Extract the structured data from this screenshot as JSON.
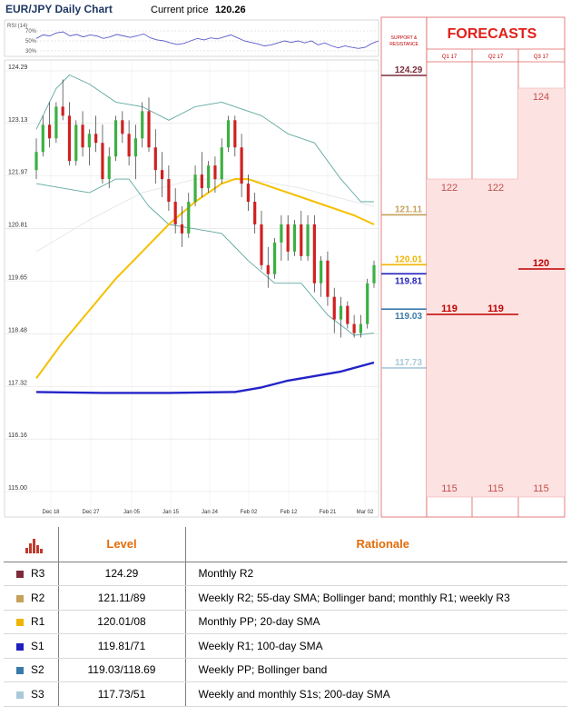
{
  "header": {
    "title": "EUR/JPY Daily Chart",
    "current_price_label": "Current price",
    "current_price": "120.26"
  },
  "rsi": {
    "label": "RSI (14)",
    "levels": [
      "70%",
      "50%",
      "30%"
    ]
  },
  "forecast_panel": {
    "title": "FORECASTS",
    "sr_header": "SUPPORT & RESISTANCE",
    "columns": [
      {
        "name": "Q1 17",
        "high": "122",
        "mid": "119",
        "low": "115"
      },
      {
        "name": "Q2 17",
        "high": "122",
        "mid": "119",
        "low": "115"
      },
      {
        "name": "Q3 17",
        "high": "124",
        "mid": "120",
        "low": "115"
      }
    ]
  },
  "chart_data": {
    "type": "candlestick",
    "title": "EUR/JPY Daily Chart",
    "ylim": [
      115.0,
      124.29
    ],
    "y_ticks": [
      "124.29",
      "123.13",
      "121.97",
      "120.81",
      "119.65",
      "118.48",
      "117.32",
      "116.16",
      "115.00"
    ],
    "x_ticks": [
      "Dec 18",
      "Dec 27",
      "Jan 05",
      "Jan 15",
      "Jan 24",
      "Feb 02",
      "Feb 12",
      "Feb 21",
      "Mar 02"
    ],
    "candles": [
      [
        122.1,
        122.8,
        121.9,
        122.5
      ],
      [
        122.5,
        123.3,
        122.4,
        123.1
      ],
      [
        123.1,
        123.6,
        122.6,
        122.8
      ],
      [
        122.8,
        123.6,
        122.7,
        123.5
      ],
      [
        123.5,
        124.1,
        123.2,
        123.3
      ],
      [
        123.3,
        123.6,
        122.2,
        122.3
      ],
      [
        122.3,
        123.2,
        122.2,
        123.1
      ],
      [
        123.1,
        123.4,
        122.4,
        122.6
      ],
      [
        122.6,
        123.0,
        122.2,
        122.9
      ],
      [
        122.9,
        123.3,
        122.5,
        122.7
      ],
      [
        122.7,
        123.1,
        121.8,
        121.9
      ],
      [
        121.9,
        122.6,
        121.7,
        122.4
      ],
      [
        122.4,
        123.3,
        122.3,
        123.2
      ],
      [
        123.2,
        123.4,
        122.7,
        122.9
      ],
      [
        122.9,
        123.2,
        122.2,
        122.4
      ],
      [
        122.4,
        123.1,
        121.9,
        122.8
      ],
      [
        122.8,
        123.6,
        122.6,
        123.4
      ],
      [
        123.4,
        123.7,
        122.5,
        122.6
      ],
      [
        122.6,
        123.0,
        121.8,
        122.1
      ],
      [
        122.1,
        122.5,
        121.5,
        121.9
      ],
      [
        121.9,
        122.2,
        121.2,
        121.4
      ],
      [
        121.4,
        121.7,
        120.7,
        120.9
      ],
      [
        120.9,
        121.3,
        120.4,
        120.7
      ],
      [
        120.7,
        121.6,
        120.6,
        121.4
      ],
      [
        121.4,
        122.2,
        121.3,
        122.0
      ],
      [
        122.0,
        122.5,
        121.5,
        121.7
      ],
      [
        121.7,
        122.3,
        121.6,
        122.2
      ],
      [
        122.2,
        122.4,
        121.6,
        121.9
      ],
      [
        121.9,
        122.8,
        121.8,
        122.6
      ],
      [
        122.6,
        123.3,
        122.5,
        123.2
      ],
      [
        123.2,
        123.3,
        122.4,
        122.6
      ],
      [
        122.6,
        122.9,
        121.5,
        121.8
      ],
      [
        121.8,
        122.0,
        121.2,
        121.4
      ],
      [
        121.4,
        121.6,
        120.7,
        120.9
      ],
      [
        120.9,
        121.2,
        119.9,
        120.0
      ],
      [
        120.0,
        120.4,
        119.5,
        119.8
      ],
      [
        119.8,
        120.6,
        119.7,
        120.5
      ],
      [
        120.5,
        121.1,
        120.1,
        120.9
      ],
      [
        120.9,
        121.1,
        120.1,
        120.3
      ],
      [
        120.3,
        121.0,
        120.2,
        120.9
      ],
      [
        120.9,
        121.2,
        120.1,
        120.2
      ],
      [
        120.2,
        121.1,
        120.1,
        120.9
      ],
      [
        120.9,
        121.1,
        119.4,
        119.6
      ],
      [
        119.6,
        120.2,
        119.3,
        120.1
      ],
      [
        120.1,
        120.3,
        119.1,
        119.3
      ],
      [
        119.3,
        119.5,
        118.5,
        118.8
      ],
      [
        118.8,
        119.3,
        118.4,
        119.1
      ],
      [
        119.1,
        119.2,
        118.6,
        118.7
      ],
      [
        118.7,
        118.9,
        118.4,
        118.5
      ],
      [
        118.5,
        118.9,
        118.4,
        118.7
      ],
      [
        118.7,
        119.7,
        118.6,
        119.6
      ],
      [
        119.6,
        120.1,
        119.5,
        120.0
      ]
    ],
    "sma_20": [
      [
        0,
        117.5
      ],
      [
        4,
        118.3
      ],
      [
        8,
        119.0
      ],
      [
        12,
        119.7
      ],
      [
        16,
        120.3
      ],
      [
        20,
        120.9
      ],
      [
        24,
        121.4
      ],
      [
        28,
        121.8
      ],
      [
        30,
        121.9
      ],
      [
        32,
        121.9
      ],
      [
        36,
        121.7
      ],
      [
        40,
        121.5
      ],
      [
        44,
        121.3
      ],
      [
        48,
        121.1
      ],
      [
        51,
        120.9
      ]
    ],
    "sma_100": [
      [
        0,
        117.2
      ],
      [
        10,
        117.18
      ],
      [
        20,
        117.18
      ],
      [
        30,
        117.2
      ],
      [
        34,
        117.3
      ],
      [
        38,
        117.45
      ],
      [
        42,
        117.55
      ],
      [
        46,
        117.65
      ],
      [
        51,
        117.85
      ]
    ],
    "bollinger_upper": [
      [
        0,
        123.0
      ],
      [
        3,
        123.9
      ],
      [
        5,
        124.2
      ],
      [
        8,
        124.0
      ],
      [
        12,
        123.6
      ],
      [
        16,
        123.5
      ],
      [
        20,
        123.2
      ],
      [
        24,
        123.5
      ],
      [
        28,
        123.6
      ],
      [
        30,
        123.5
      ],
      [
        34,
        123.3
      ],
      [
        38,
        122.9
      ],
      [
        42,
        122.7
      ],
      [
        46,
        121.9
      ],
      [
        49,
        121.4
      ],
      [
        51,
        121.4
      ]
    ],
    "bollinger_lower": [
      [
        0,
        121.8
      ],
      [
        4,
        121.7
      ],
      [
        8,
        121.6
      ],
      [
        12,
        121.9
      ],
      [
        14,
        121.9
      ],
      [
        17,
        121.3
      ],
      [
        20,
        120.9
      ],
      [
        24,
        120.8
      ],
      [
        28,
        120.7
      ],
      [
        32,
        120.1
      ],
      [
        36,
        119.6
      ],
      [
        40,
        119.6
      ],
      [
        44,
        118.9
      ],
      [
        48,
        118.45
      ],
      [
        51,
        118.5
      ]
    ],
    "sma_200_faint": [
      [
        0,
        120.3
      ],
      [
        8,
        121.0
      ],
      [
        16,
        121.6
      ],
      [
        24,
        121.9
      ],
      [
        32,
        121.9
      ],
      [
        40,
        121.7
      ],
      [
        48,
        121.4
      ],
      [
        51,
        121.3
      ]
    ],
    "rsi_values": [
      0.55,
      0.62,
      0.6,
      0.66,
      0.68,
      0.6,
      0.63,
      0.58,
      0.62,
      0.6,
      0.55,
      0.58,
      0.63,
      0.6,
      0.57,
      0.6,
      0.64,
      0.56,
      0.52,
      0.5,
      0.46,
      0.43,
      0.45,
      0.5,
      0.55,
      0.52,
      0.56,
      0.54,
      0.58,
      0.62,
      0.56,
      0.5,
      0.47,
      0.44,
      0.4,
      0.42,
      0.46,
      0.5,
      0.47,
      0.5,
      0.46,
      0.5,
      0.42,
      0.46,
      0.4,
      0.36,
      0.4,
      0.37,
      0.35,
      0.37,
      0.45,
      0.5
    ],
    "level_markers": [
      {
        "value": "124.29",
        "num": 124.29,
        "color": "#7b2c3b"
      },
      {
        "value": "121.11",
        "num": 121.11,
        "color": "#c6a15b"
      },
      {
        "value": "120.01",
        "num": 120.01,
        "color": "#f0b400"
      },
      {
        "value": "119.81",
        "num": 119.81,
        "color": "#1f1fbf"
      },
      {
        "value": "119.03",
        "num": 119.03,
        "color": "#3a7aab"
      },
      {
        "value": "117.73",
        "num": 117.73,
        "color": "#a9c9d9"
      }
    ]
  },
  "level_table": {
    "headers": {
      "level": "Level",
      "rationale": "Rationale"
    },
    "rows": [
      {
        "name": "R3",
        "level": "124.29",
        "rationale": "Monthly R2",
        "color": "#7b2c3b"
      },
      {
        "name": "R2",
        "level": "121.11/89",
        "rationale": "Weekly R2; 55-day SMA; Bollinger band; monthly R1; weekly R3",
        "color": "#c6a15b"
      },
      {
        "name": "R1",
        "level": "120.01/08",
        "rationale": "Monthly PP; 20-day SMA",
        "color": "#f0b400"
      },
      {
        "name": "S1",
        "level": "119.81/71",
        "rationale": "Weekly R1; 100-day SMA",
        "color": "#1f1fbf"
      },
      {
        "name": "S2",
        "level": "119.03/118.69",
        "rationale": "Weekly PP; Bollinger band",
        "color": "#3a7aab"
      },
      {
        "name": "S3",
        "level": "117.73/51",
        "rationale": "Weekly and monthly S1s; 200-day SMA",
        "color": "#a9c9d9"
      }
    ]
  }
}
